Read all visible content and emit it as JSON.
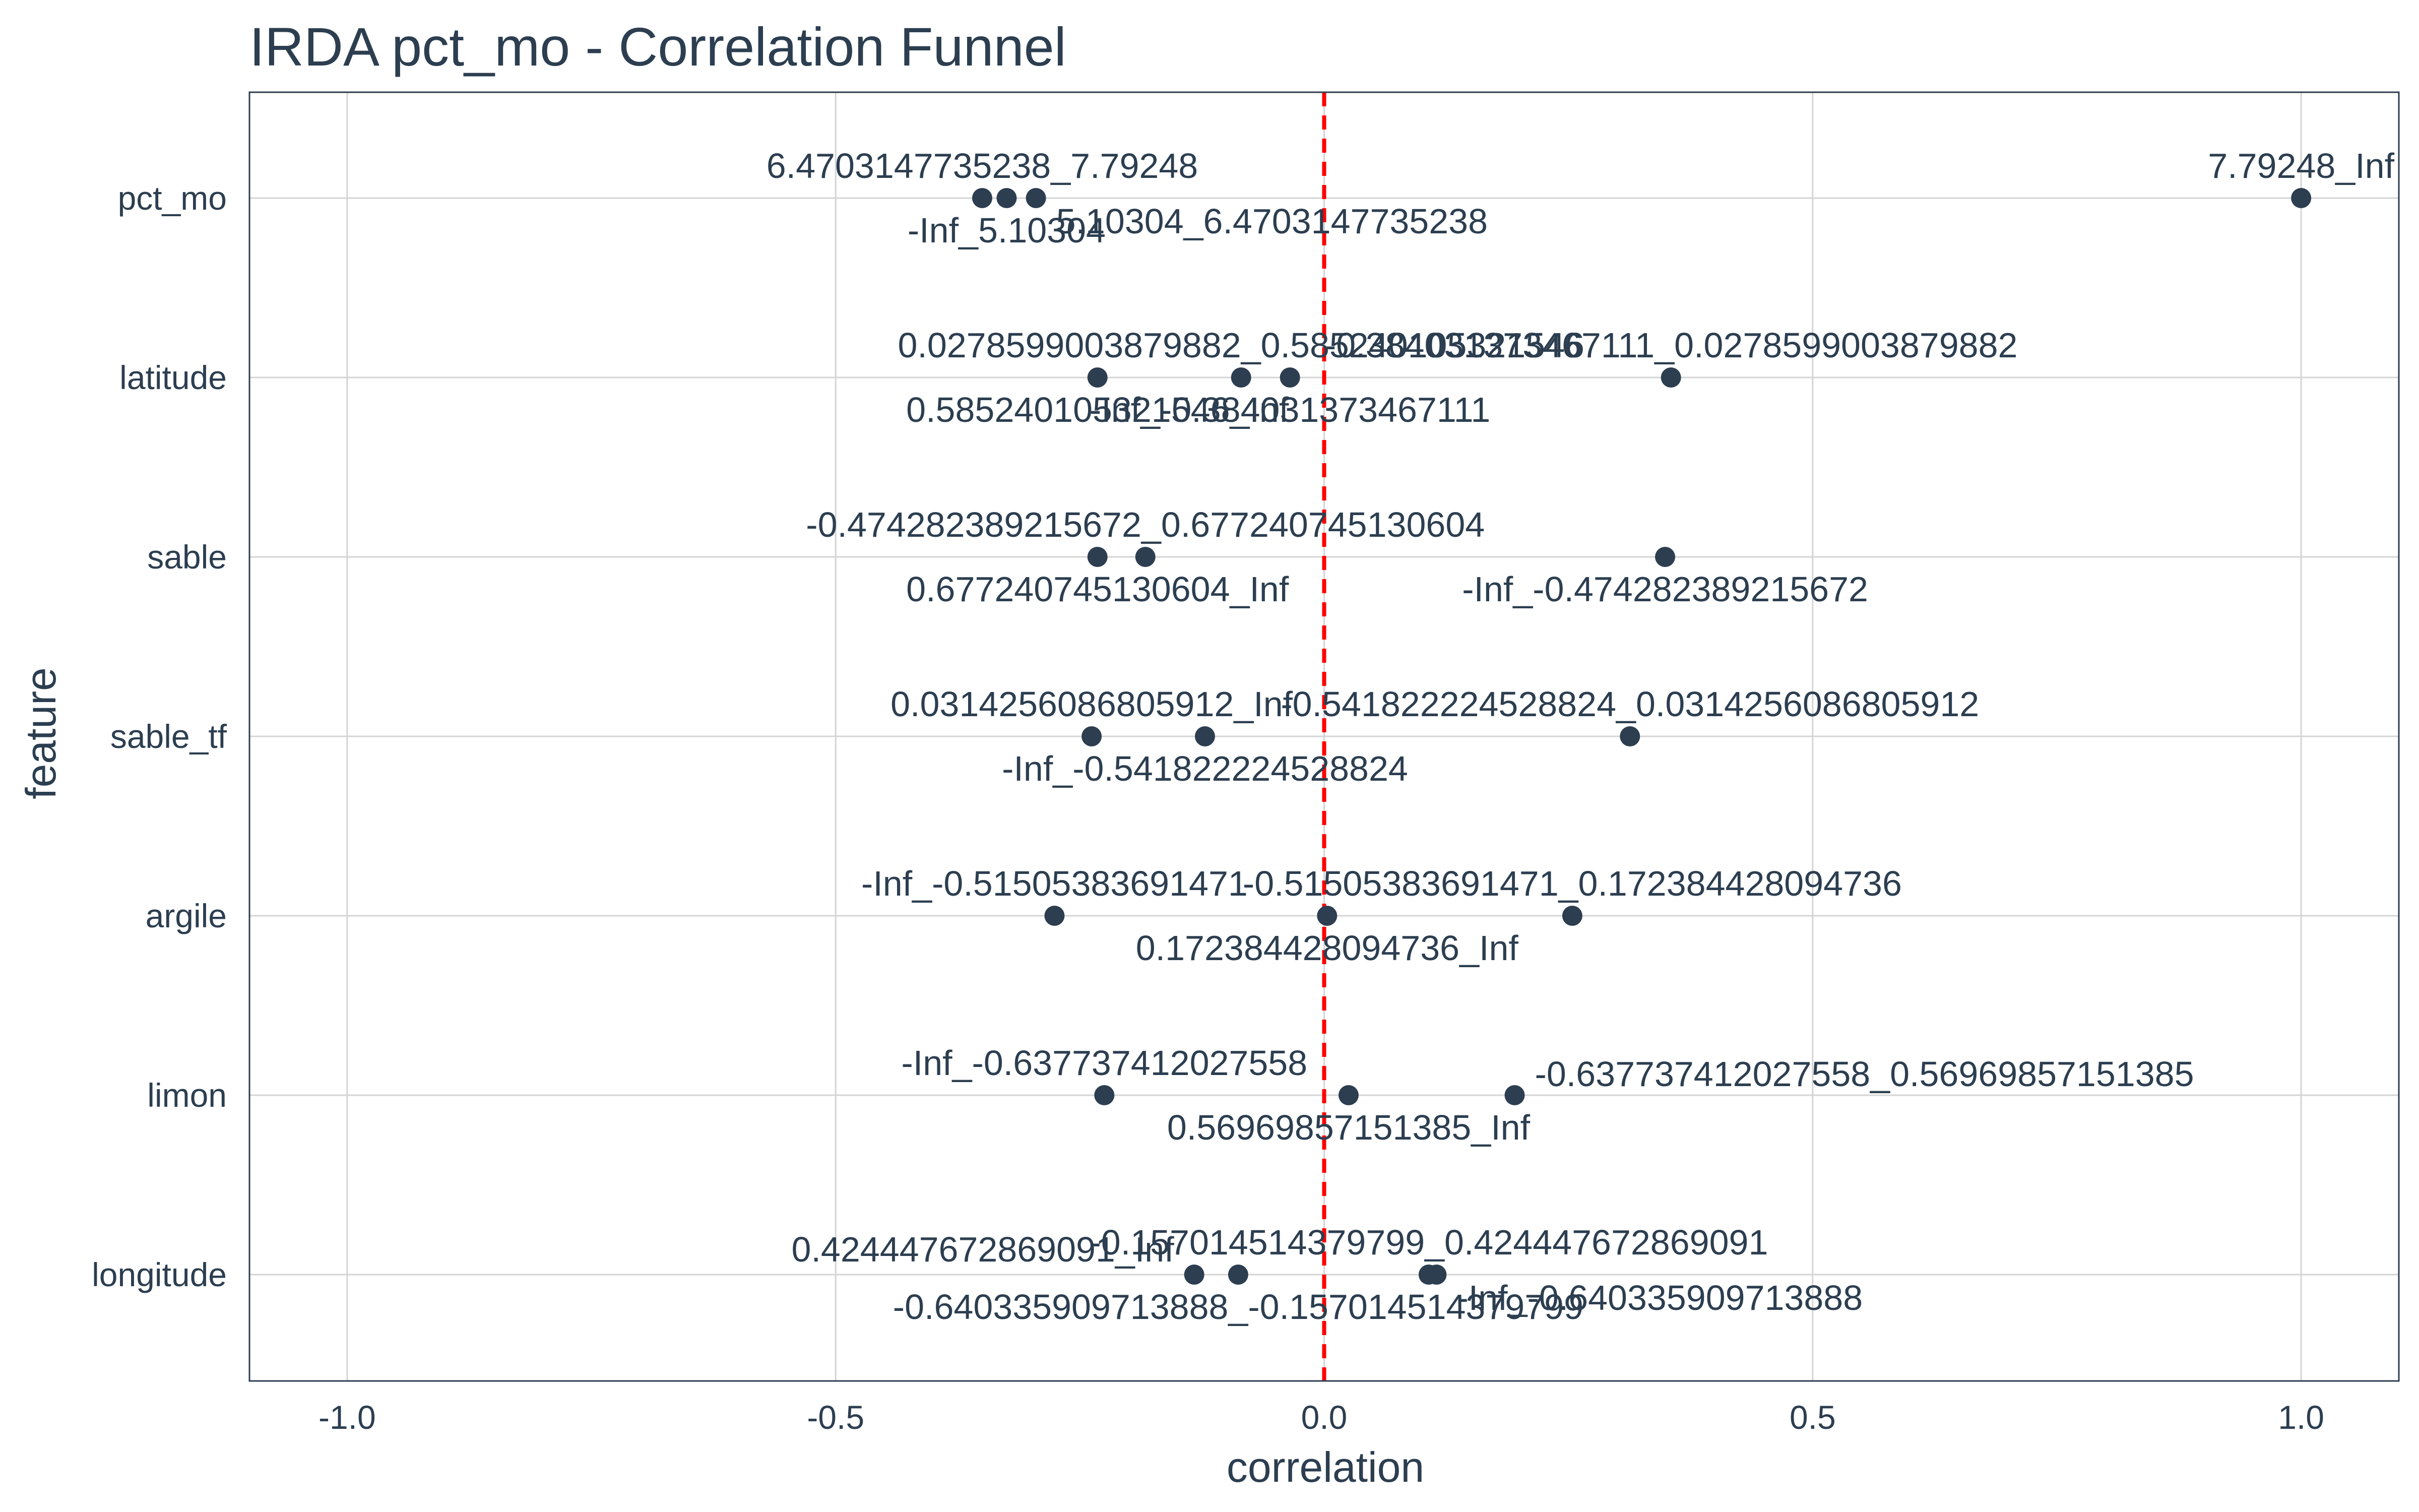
{
  "chart_data": {
    "type": "scatter",
    "title": "IRDA pct_mo - Correlation Funnel",
    "xlabel": "correlation",
    "ylabel": "feature",
    "xlim": [
      -1.1,
      1.1
    ],
    "x_ticks": [
      -1.0,
      -0.5,
      0.0,
      0.5,
      1.0
    ],
    "x_tick_labels": [
      "-1.0",
      "-0.5",
      "0.0",
      "0.5",
      "1.0"
    ],
    "categories": [
      "pct_mo",
      "latitude",
      "sable",
      "sable_tf",
      "argile",
      "limon",
      "longitude"
    ],
    "reference_line": {
      "x": 0,
      "style": "dashed",
      "color": "#ff0000"
    },
    "grid": true,
    "legend": "none",
    "point_color": "#2c3e50",
    "points": [
      {
        "feature": "pct_mo",
        "bin": "6.4703147735238_7.79248",
        "correlation": -0.35,
        "label_pos": "above"
      },
      {
        "feature": "pct_mo",
        "bin": "-Inf_5.10304",
        "correlation": -0.325,
        "label_pos": "below"
      },
      {
        "feature": "pct_mo",
        "bin": "5.10304_6.4703147735238",
        "correlation": -0.295,
        "label_pos": "below-right"
      },
      {
        "feature": "pct_mo",
        "bin": "7.79248_Inf",
        "correlation": 1.0,
        "label_pos": "above"
      },
      {
        "feature": "latitude",
        "bin": "0.585240105321546_Inf",
        "correlation": -0.232,
        "label_pos": "below"
      },
      {
        "feature": "latitude",
        "bin": "0.0278599003879882_0.585240105321546",
        "correlation": -0.085,
        "label_pos": "above"
      },
      {
        "feature": "latitude",
        "bin": "-Inf_-0.384031373467111",
        "correlation": -0.035,
        "label_pos": "below"
      },
      {
        "feature": "latitude",
        "bin": "-0.384031373467111_0.0278599003879882",
        "correlation": 0.355,
        "label_pos": "above"
      },
      {
        "feature": "sable",
        "bin": "0.677240745130604_Inf",
        "correlation": -0.232,
        "label_pos": "below"
      },
      {
        "feature": "sable",
        "bin": "-0.474282389215672_0.677240745130604",
        "correlation": -0.183,
        "label_pos": "above"
      },
      {
        "feature": "sable",
        "bin": "-Inf_-0.474282389215672",
        "correlation": 0.349,
        "label_pos": "below"
      },
      {
        "feature": "sable_tf",
        "bin": "0.0314256086805912_Inf",
        "correlation": -0.238,
        "label_pos": "above"
      },
      {
        "feature": "sable_tf",
        "bin": "-Inf_-0.541822224528824",
        "correlation": -0.122,
        "label_pos": "below"
      },
      {
        "feature": "sable_tf",
        "bin": "-0.541822224528824_0.0314256086805912",
        "correlation": 0.313,
        "label_pos": "above"
      },
      {
        "feature": "argile",
        "bin": "-Inf_-0.51505383691471",
        "correlation": -0.276,
        "label_pos": "above"
      },
      {
        "feature": "argile",
        "bin": "0.172384428094736_Inf",
        "correlation": 0.003,
        "label_pos": "below"
      },
      {
        "feature": "argile",
        "bin": "-0.51505383691471_0.172384428094736",
        "correlation": 0.254,
        "label_pos": "above"
      },
      {
        "feature": "limon",
        "bin": "-Inf_-0.637737412027558",
        "correlation": -0.225,
        "label_pos": "above"
      },
      {
        "feature": "limon",
        "bin": "0.56969857151385_Inf",
        "correlation": 0.025,
        "label_pos": "below"
      },
      {
        "feature": "limon",
        "bin": "-0.637737412027558_0.56969857151385",
        "correlation": 0.195,
        "label_pos": "right"
      },
      {
        "feature": "longitude",
        "bin": "0.424447672869091_Inf",
        "correlation": -0.133,
        "label_pos": "above-left"
      },
      {
        "feature": "longitude",
        "bin": "-0.640335909713888_-0.157014514379799",
        "correlation": -0.088,
        "label_pos": "below"
      },
      {
        "feature": "longitude",
        "bin": "-0.157014514379799_0.424447672869091",
        "correlation": 0.107,
        "label_pos": "above"
      },
      {
        "feature": "longitude",
        "bin": "-Inf_-0.640335909713888",
        "correlation": 0.115,
        "label_pos": "below-right"
      }
    ]
  }
}
